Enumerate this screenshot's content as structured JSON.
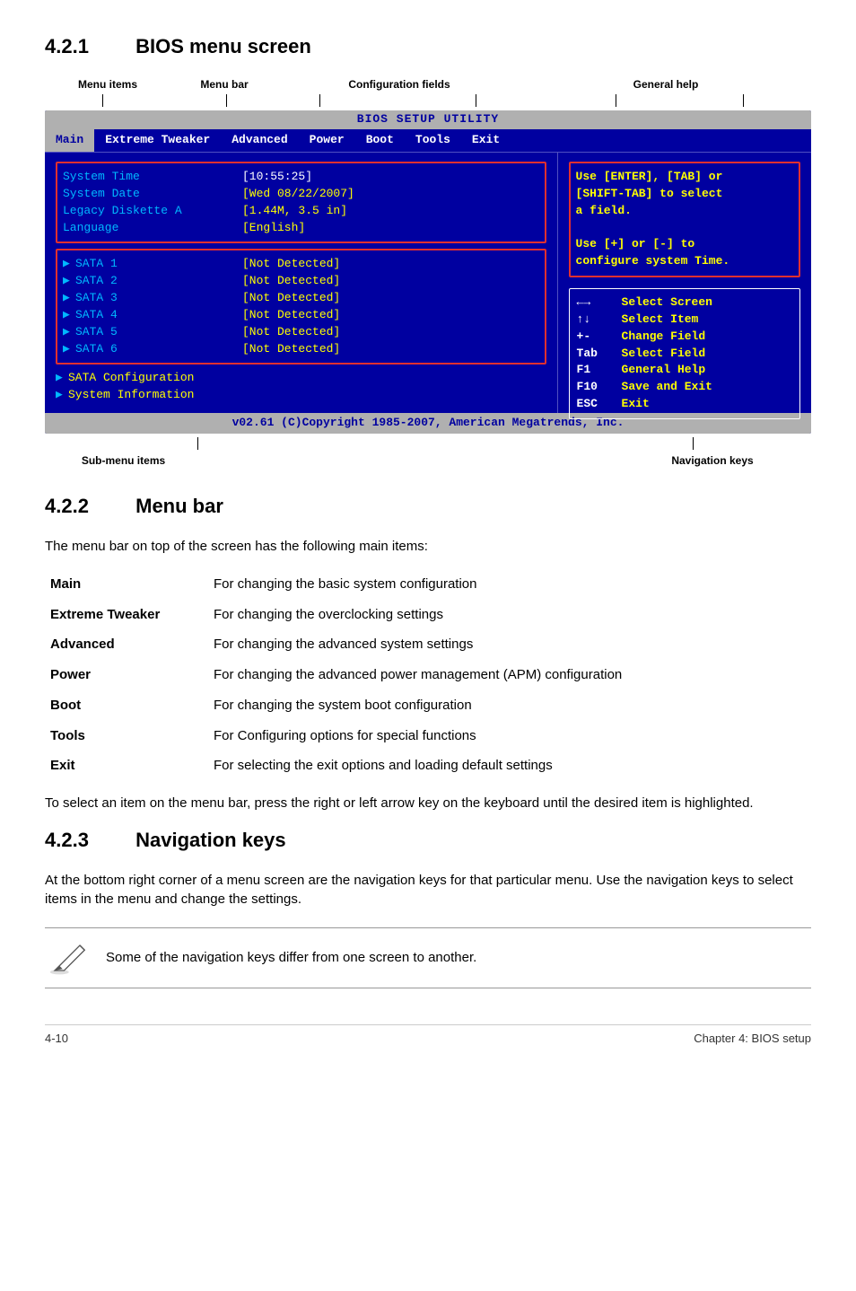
{
  "section_421": {
    "num": "4.2.1",
    "title": "BIOS menu screen"
  },
  "topLabels": {
    "l1": "Menu items",
    "l2": "Menu bar",
    "l3": "Configuration fields",
    "l4": "General help"
  },
  "topTicks": [
    64,
    202,
    306,
    480,
    636,
    778
  ],
  "bios": {
    "title": "BIOS SETUP UTILITY",
    "menu": [
      "Main",
      "Extreme Tweaker",
      "Advanced",
      "Power",
      "Boot",
      "Tools",
      "Exit"
    ],
    "activeIndex": 0,
    "left_top": [
      {
        "k": "System Time",
        "v": "[10:55:25]",
        "vcol": "vwhite"
      },
      {
        "k": "System Date",
        "v": "[Wed 08/22/2007]",
        "vcol": "sub"
      },
      {
        "k": "Legacy Diskette A",
        "v": "[1.44M, 3.5 in]",
        "vcol": "sub"
      },
      {
        "k": "Language",
        "v": "[English]",
        "vcol": "sub"
      }
    ],
    "left_mid": [
      {
        "k": "SATA 1",
        "v": "[Not Detected]"
      },
      {
        "k": "SATA 2",
        "v": "[Not Detected]"
      },
      {
        "k": "SATA 3",
        "v": "[Not Detected]"
      },
      {
        "k": "SATA 4",
        "v": "[Not Detected]"
      },
      {
        "k": "SATA 5",
        "v": "[Not Detected]"
      },
      {
        "k": "SATA 6",
        "v": "[Not Detected]"
      }
    ],
    "left_bot": [
      "SATA Configuration",
      "System Information"
    ],
    "right_help_lines": [
      "Use [ENTER], [TAB] or",
      "[SHIFT-TAB] to select",
      "a field.",
      "",
      "Use [+] or [-] to",
      "configure system Time."
    ],
    "nav": [
      {
        "k": "←→",
        "v": "Select Screen"
      },
      {
        "k": "↑↓",
        "v": "Select Item"
      },
      {
        "k": "+-",
        "v": "Change Field"
      },
      {
        "k": "Tab",
        "v": "Select Field"
      },
      {
        "k": "F1",
        "v": "General Help"
      },
      {
        "k": "F10",
        "v": "Save and Exit"
      },
      {
        "k": "ESC",
        "v": "Exit"
      }
    ],
    "footer": "v02.61 (C)Copyright 1985-2007, American Megatrends, Inc."
  },
  "underLabels": {
    "u1": "Sub-menu items",
    "u2": "Navigation keys"
  },
  "underTicks": [
    170,
    722
  ],
  "section_422": {
    "num": "4.2.2",
    "title": "Menu bar"
  },
  "p422": "The menu bar on top of the screen has the following main items:",
  "defs": [
    {
      "k": "Main",
      "v": "For changing the basic system configuration"
    },
    {
      "k": "Extreme Tweaker",
      "v": "For changing the overclocking settings"
    },
    {
      "k": "Advanced",
      "v": "For changing the advanced system settings"
    },
    {
      "k": "Power",
      "v": "For changing the advanced power management (APM) configuration"
    },
    {
      "k": "Boot",
      "v": "For changing the system boot configuration"
    },
    {
      "k": "Tools",
      "v": "For Configuring options for special functions"
    },
    {
      "k": "Exit",
      "v": "For selecting the exit options and loading default settings"
    }
  ],
  "p422b": "To select an item on the menu bar, press the right or left arrow key on the keyboard until the desired item is highlighted.",
  "section_423": {
    "num": "4.2.3",
    "title": "Navigation keys"
  },
  "p423": "At the bottom right corner of a menu screen are the navigation keys for that particular menu. Use the navigation keys to select items in the menu and change the settings.",
  "note": "Some of the navigation keys differ from one screen to another.",
  "footer": {
    "left": "4-10",
    "right": "Chapter 4: BIOS setup"
  }
}
